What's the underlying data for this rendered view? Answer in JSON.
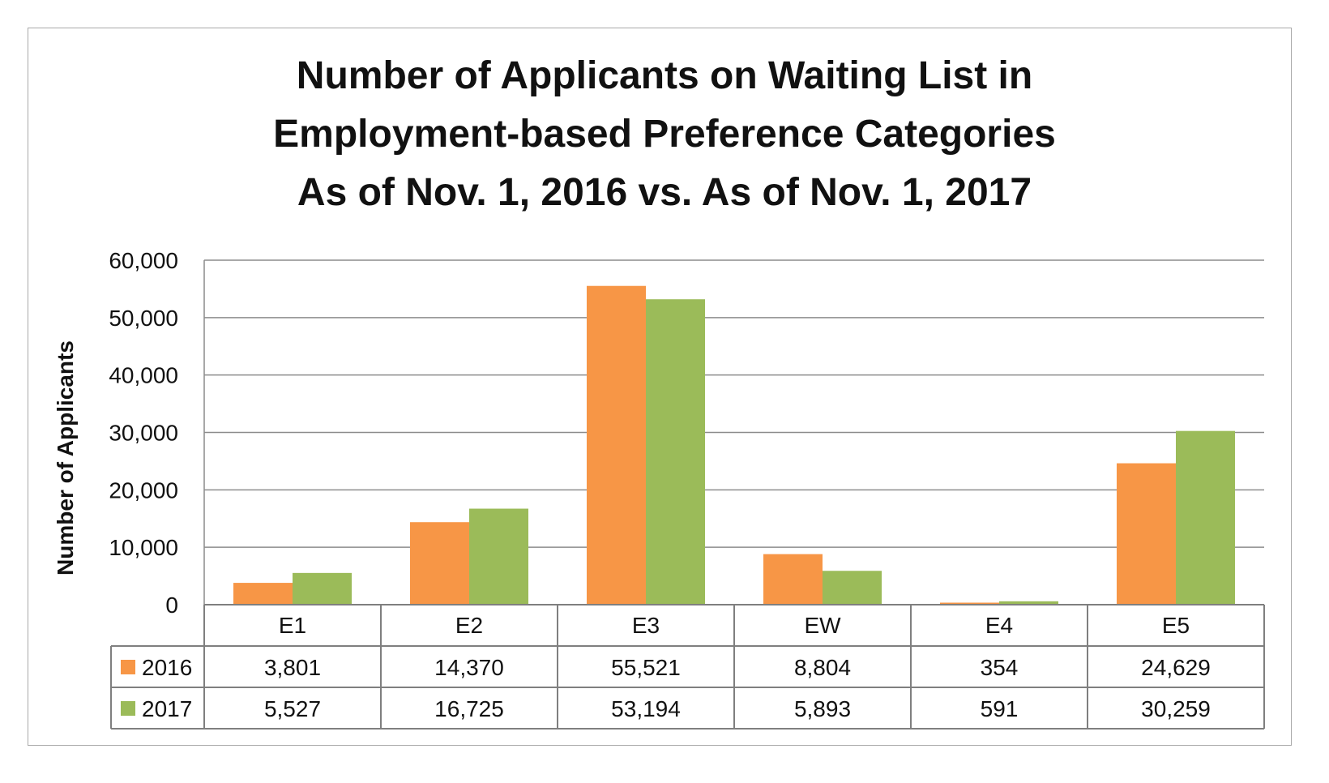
{
  "chart_data": {
    "type": "bar",
    "title_lines": [
      "Number of Applicants on Waiting List in",
      "Employment-based Preference Categories",
      "As of Nov. 1, 2016 vs. As of Nov. 1, 2017"
    ],
    "ylabel": "Number of Applicants",
    "xlabel": "",
    "ylim": [
      0,
      60000
    ],
    "yticks": [
      0,
      10000,
      20000,
      30000,
      40000,
      50000,
      60000
    ],
    "ytick_labels": [
      "0",
      "10,000",
      "20,000",
      "30,000",
      "40,000",
      "50,000",
      "60,000"
    ],
    "grid": true,
    "legend": "data-table",
    "categories": [
      "E1",
      "E2",
      "E3",
      "EW",
      "E4",
      "E5"
    ],
    "series": [
      {
        "name": "2016",
        "color": "#f79646",
        "values": [
          3801,
          14370,
          55521,
          8804,
          354,
          24629
        ],
        "labels": [
          "3,801",
          "14,370",
          "55,521",
          "8,804",
          "354",
          "24,629"
        ]
      },
      {
        "name": "2017",
        "color": "#9bbb59",
        "values": [
          5527,
          16725,
          53194,
          5893,
          591,
          30259
        ],
        "labels": [
          "5,527",
          "16,725",
          "53,194",
          "5,893",
          "591",
          "30,259"
        ]
      }
    ]
  }
}
